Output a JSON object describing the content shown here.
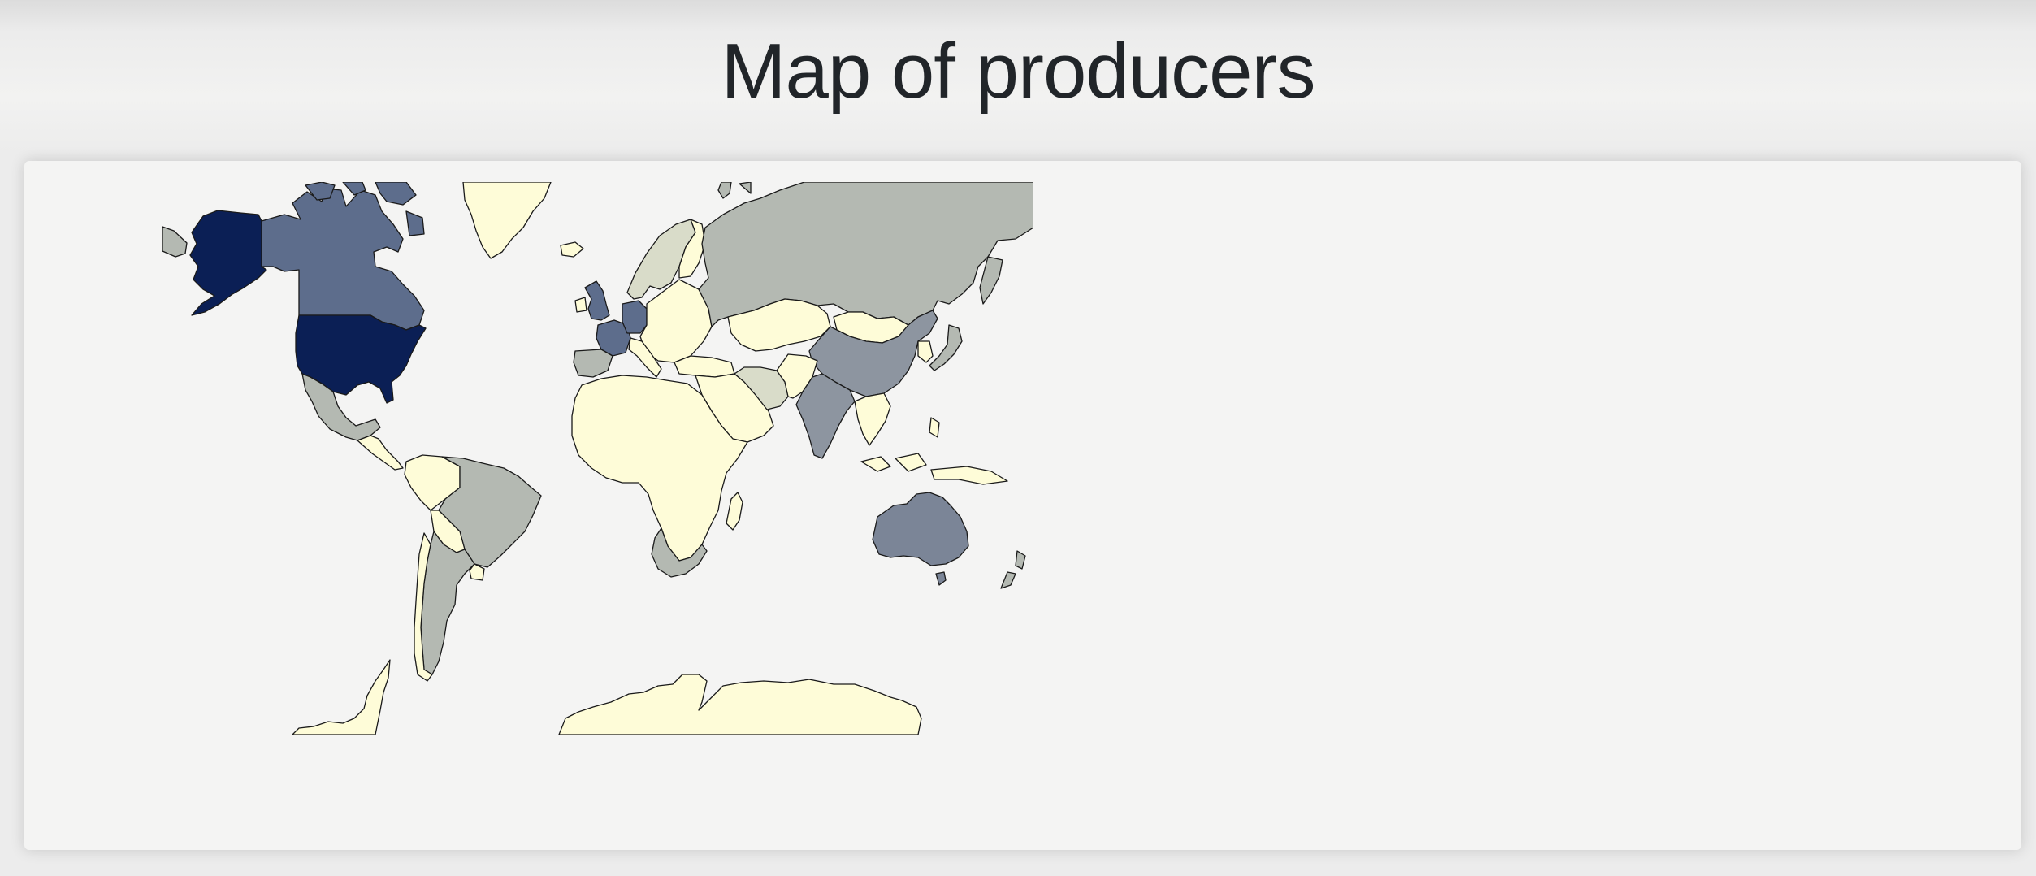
{
  "page": {
    "title": "Map of producers"
  },
  "map": {
    "type": "choropleth",
    "projection": "mercator",
    "colors": {
      "level_5": "#0b1f55",
      "level_4": "#5d6d8c",
      "level_3": "#7b8597",
      "level_2": "#8d95a0",
      "level_1": "#b4b9b2",
      "level_0_5": "#d9dcc9",
      "none": "#fefcd8"
    },
    "regions": [
      {
        "name": "Alaska",
        "level": "level_5"
      },
      {
        "name": "United States",
        "level": "level_5"
      },
      {
        "name": "Canada",
        "level": "level_4"
      },
      {
        "name": "United Kingdom",
        "level": "level_4"
      },
      {
        "name": "France",
        "level": "level_4"
      },
      {
        "name": "Germany",
        "level": "level_4"
      },
      {
        "name": "Australia",
        "level": "level_3"
      },
      {
        "name": "China",
        "level": "level_2"
      },
      {
        "name": "India",
        "level": "level_2"
      },
      {
        "name": "Russia",
        "level": "level_1"
      },
      {
        "name": "Mexico",
        "level": "level_1"
      },
      {
        "name": "Brazil",
        "level": "level_1"
      },
      {
        "name": "Argentina",
        "level": "level_1"
      },
      {
        "name": "South Africa",
        "level": "level_1"
      },
      {
        "name": "New Zealand",
        "level": "level_1"
      },
      {
        "name": "Spain",
        "level": "level_1"
      },
      {
        "name": "Japan",
        "level": "level_1"
      },
      {
        "name": "Scandinavia",
        "level": "level_0_5"
      },
      {
        "name": "Iran",
        "level": "level_0_5"
      },
      {
        "name": "Greenland",
        "level": "none"
      },
      {
        "name": "Africa",
        "level": "none"
      },
      {
        "name": "Middle East",
        "level": "none"
      },
      {
        "name": "Kazakhstan",
        "level": "none"
      },
      {
        "name": "Mongolia",
        "level": "none"
      },
      {
        "name": "Antarctica",
        "level": "none"
      }
    ]
  }
}
